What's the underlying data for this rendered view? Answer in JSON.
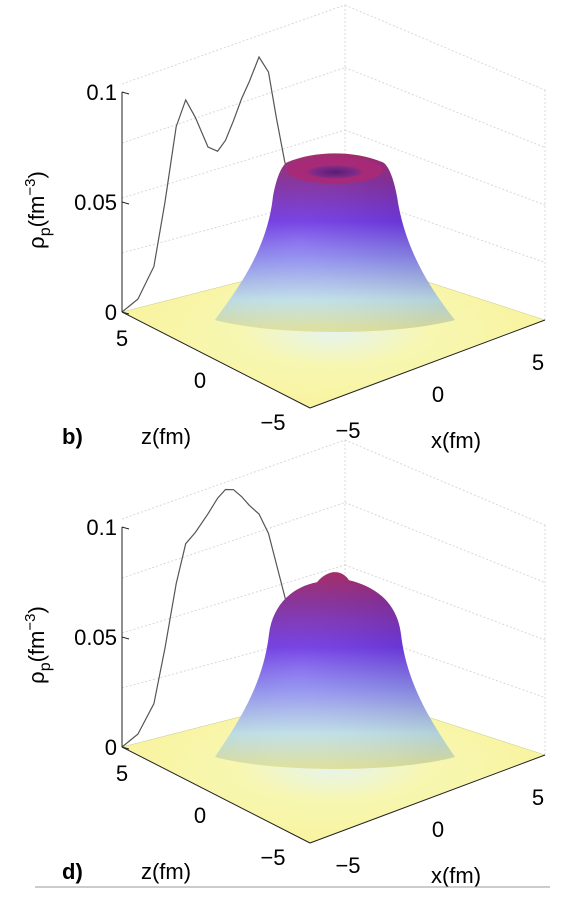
{
  "chart_data": [
    {
      "type": "surface3d",
      "panel_label": "b)",
      "zlabel": "ρ_p(fm^-3)",
      "xlabel": "x(fm)",
      "ylabel": "z(fm)",
      "z_ticks": [
        "0",
        "0.05",
        "0.1"
      ],
      "x_ticks": [
        "−5",
        "0",
        "5"
      ],
      "y_ticks": [
        "5",
        "0",
        "−5"
      ],
      "zlim": [
        0,
        0.1
      ],
      "xlim": [
        -7,
        7
      ],
      "ylim": [
        -7,
        7
      ],
      "surface_peak": 0.088,
      "surface_shape": "ring (central depression)",
      "projected_profile": {
        "x": [
          -7,
          -6,
          -5,
          -4.3,
          -3.6,
          -3,
          -2.4,
          -1.6,
          -1,
          -0.5,
          0,
          0.5,
          1,
          1.6,
          2.2,
          2.7,
          3.2,
          3.8,
          4.4
        ],
        "y": [
          0,
          0.004,
          0.017,
          0.045,
          0.078,
          0.089,
          0.08,
          0.065,
          0.062,
          0.066,
          0.074,
          0.083,
          0.09,
          0.1,
          0.092,
          0.07,
          0.05,
          0.03,
          0.018
        ]
      }
    },
    {
      "type": "surface3d",
      "panel_label": "d)",
      "zlabel": "ρ_p(fm^-3)",
      "xlabel": "x(fm)",
      "ylabel": "z(fm)",
      "z_ticks": [
        "0",
        "0.05",
        "0.1"
      ],
      "x_ticks": [
        "−5",
        "0",
        "5"
      ],
      "y_ticks": [
        "5",
        "0",
        "−5"
      ],
      "zlim": [
        0,
        0.1
      ],
      "xlim": [
        -7,
        7
      ],
      "ylim": [
        -7,
        7
      ],
      "surface_peak": 0.094,
      "surface_shape": "single peak",
      "projected_profile": {
        "x": [
          -7,
          -6,
          -5,
          -4.3,
          -3.6,
          -3,
          -2.4,
          -1.6,
          -1,
          -0.5,
          0,
          0.5,
          1,
          1.6,
          2.2,
          2.7,
          3.2,
          3.8,
          4.4
        ],
        "y": [
          0,
          0.004,
          0.016,
          0.04,
          0.068,
          0.085,
          0.089,
          0.096,
          0.102,
          0.105,
          0.104,
          0.1,
          0.095,
          0.09,
          0.08,
          0.065,
          0.05,
          0.032,
          0.02
        ]
      }
    }
  ]
}
